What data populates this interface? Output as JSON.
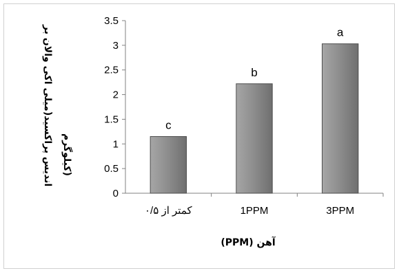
{
  "chart_data": {
    "type": "bar",
    "categories": [
      "کمتر از ۰/۵",
      "1PPM",
      "3PPM"
    ],
    "values": [
      1.15,
      2.22,
      3.03
    ],
    "data_labels": [
      "c",
      "b",
      "a"
    ],
    "ylabel_lines": [
      "اندیس پراکسید(میلی اکی والان بر",
      "کیلوگرم)"
    ],
    "xlabel": "آهن (PPM)",
    "ylim": [
      0,
      3.5
    ],
    "yticks": [
      "0",
      "0.5",
      "1",
      "1.5",
      "2",
      "2.5",
      "3",
      "3.5"
    ],
    "grid": false,
    "bar_color": "#8c8c8c"
  }
}
